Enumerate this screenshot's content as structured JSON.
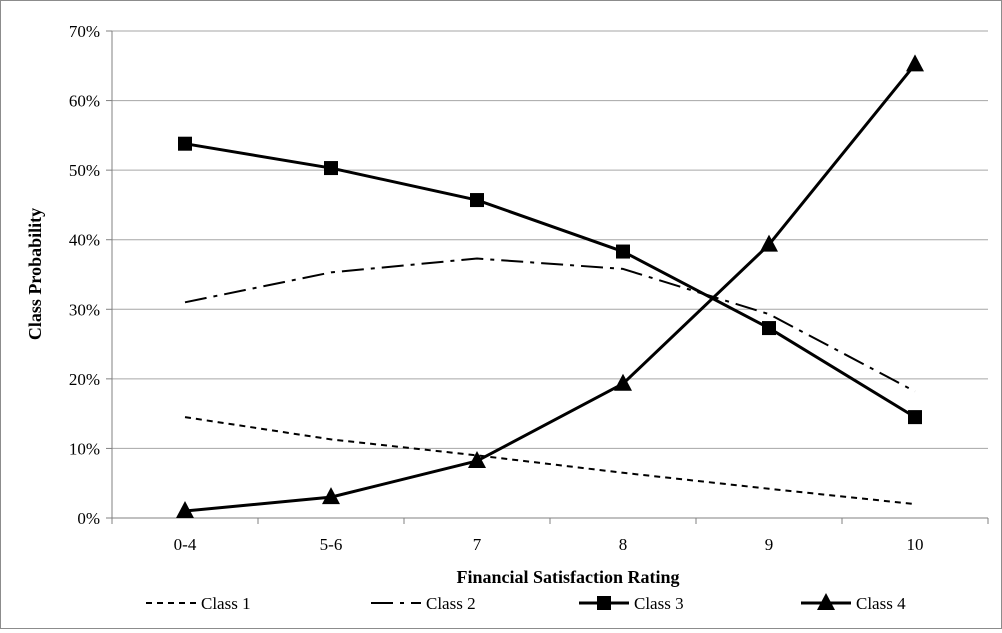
{
  "chart_data": {
    "type": "line",
    "title": "",
    "xlabel": "Financial  Satisfaction Rating",
    "ylabel": "Class Probability",
    "categories": [
      "0-4",
      "5-6",
      "7",
      "8",
      "9",
      "10"
    ],
    "ylim": [
      0,
      70
    ],
    "yticks": [
      "0%",
      "10%",
      "20%",
      "30%",
      "40%",
      "50%",
      "60%",
      "70%"
    ],
    "grid": true,
    "legend_position": "bottom",
    "series": [
      {
        "name": "Class 1",
        "values": [
          14.5,
          11.3,
          9.0,
          6.5,
          4.2,
          2.0
        ],
        "style": "dashed",
        "marker": "none",
        "color": "#000000"
      },
      {
        "name": "Class 2",
        "values": [
          31.0,
          35.3,
          37.3,
          35.8,
          29.3,
          18.2
        ],
        "style": "dash-dot",
        "marker": "none",
        "color": "#000000"
      },
      {
        "name": "Class 3",
        "values": [
          53.8,
          50.3,
          45.7,
          38.3,
          27.3,
          14.5
        ],
        "style": "solid",
        "marker": "square",
        "color": "#000000"
      },
      {
        "name": "Class 4",
        "values": [
          1.0,
          3.0,
          8.2,
          19.3,
          39.3,
          65.2
        ],
        "style": "solid",
        "marker": "triangle",
        "color": "#000000"
      }
    ]
  }
}
